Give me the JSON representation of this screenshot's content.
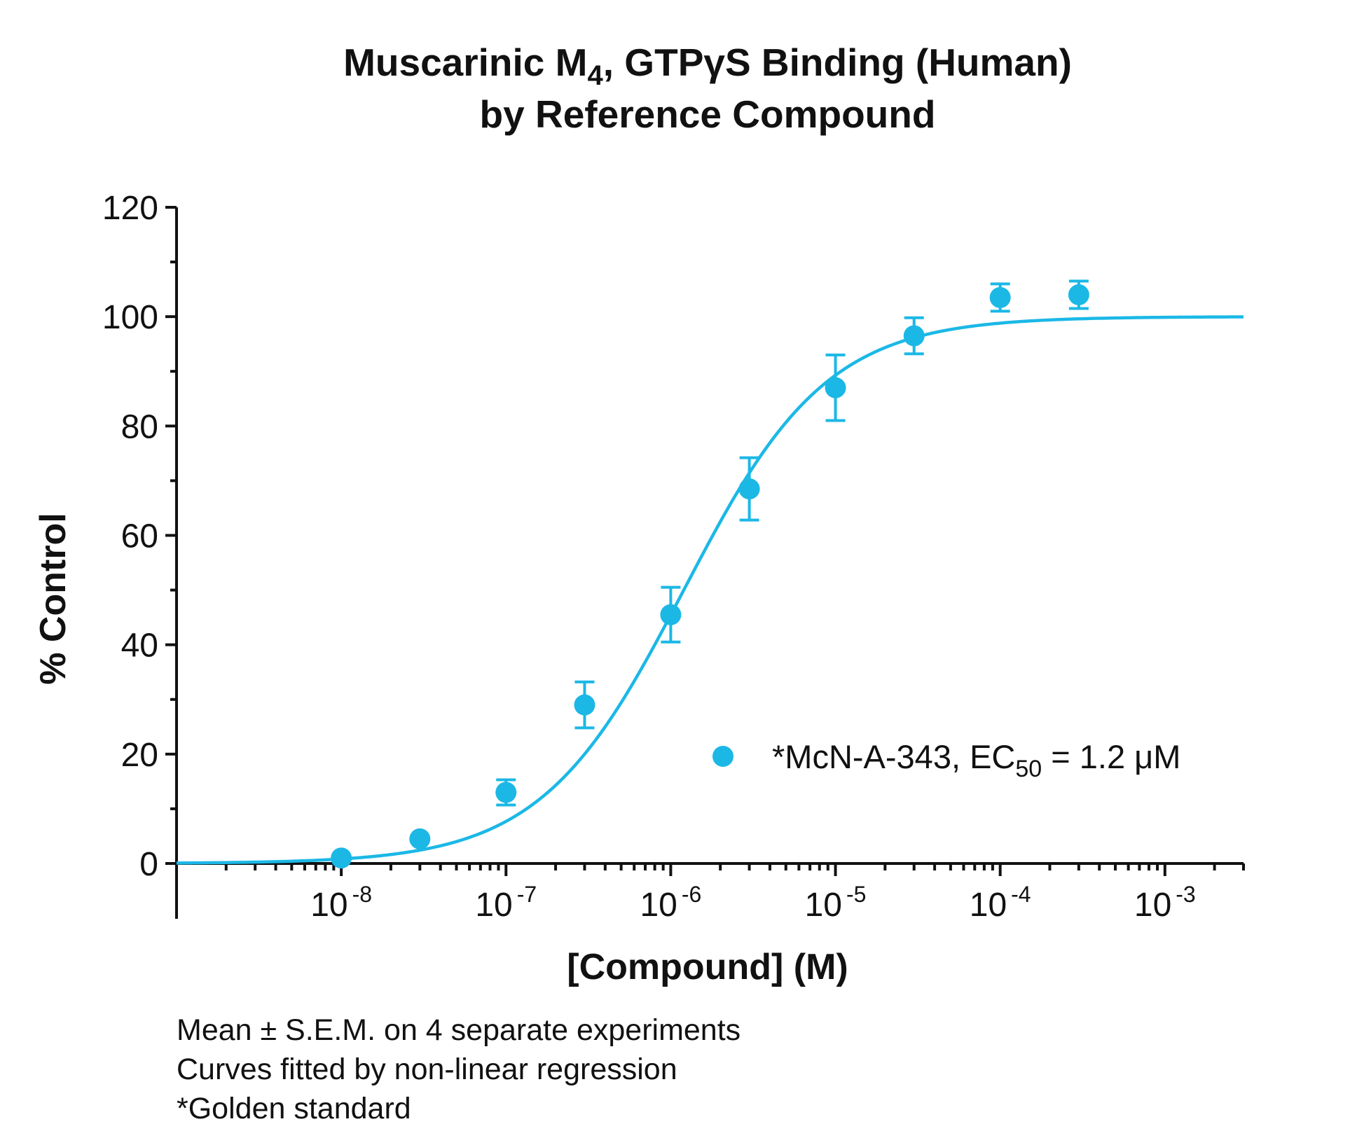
{
  "chart_data": {
    "type": "scatter",
    "title_line1_pre": "Muscarinic M",
    "title_line1_sub": "4",
    "title_line1_post": ", GTPγS Binding (Human)",
    "title_line2": "by Reference Compound",
    "xlabel": "[Compound] (M)",
    "ylabel": "% Control",
    "xscale": "log",
    "xlim": [
      1e-09,
      0.003
    ],
    "ylim": [
      0,
      120
    ],
    "y_ticks": [
      0,
      20,
      40,
      60,
      80,
      100,
      120
    ],
    "y_minor_step": 10,
    "x_tick_base": "10",
    "x_ticks": [
      {
        "value": 1e-08,
        "exp": "-8"
      },
      {
        "value": 1e-07,
        "exp": "-7"
      },
      {
        "value": 1e-06,
        "exp": "-6"
      },
      {
        "value": 1e-05,
        "exp": "-5"
      },
      {
        "value": 0.0001,
        "exp": "-4"
      },
      {
        "value": 0.001,
        "exp": "-3"
      }
    ],
    "series": [
      {
        "name": "*McN-A-343",
        "color": "#1bb8e6",
        "points": [
          {
            "x": 1e-08,
            "y": 1.0,
            "sem": 0
          },
          {
            "x": 3e-08,
            "y": 4.5,
            "sem": 0
          },
          {
            "x": 1e-07,
            "y": 13.0,
            "sem": 2.3
          },
          {
            "x": 3e-07,
            "y": 29.0,
            "sem": 4.2
          },
          {
            "x": 1e-06,
            "y": 45.5,
            "sem": 5.0
          },
          {
            "x": 3e-06,
            "y": 68.5,
            "sem": 5.7
          },
          {
            "x": 1e-05,
            "y": 87.0,
            "sem": 6.0
          },
          {
            "x": 3e-05,
            "y": 96.5,
            "sem": 3.3
          },
          {
            "x": 0.0001,
            "y": 103.5,
            "sem": 2.5
          },
          {
            "x": 0.0003,
            "y": 104.0,
            "sem": 2.5
          }
        ],
        "fit": {
          "model": "sigmoidal dose-response",
          "bottom": 0,
          "top": 100,
          "ec50": 1.2e-06,
          "hill": 1.0
        }
      }
    ],
    "legend": {
      "position": "lower-right",
      "label_pre": "*McN-A-343, EC",
      "label_sub": "50",
      "label_post": " = 1.2 μM"
    }
  },
  "notes": [
    "Mean ± S.E.M. on 4 separate experiments",
    "Curves fitted by non-linear regression",
    "*Golden standard"
  ]
}
